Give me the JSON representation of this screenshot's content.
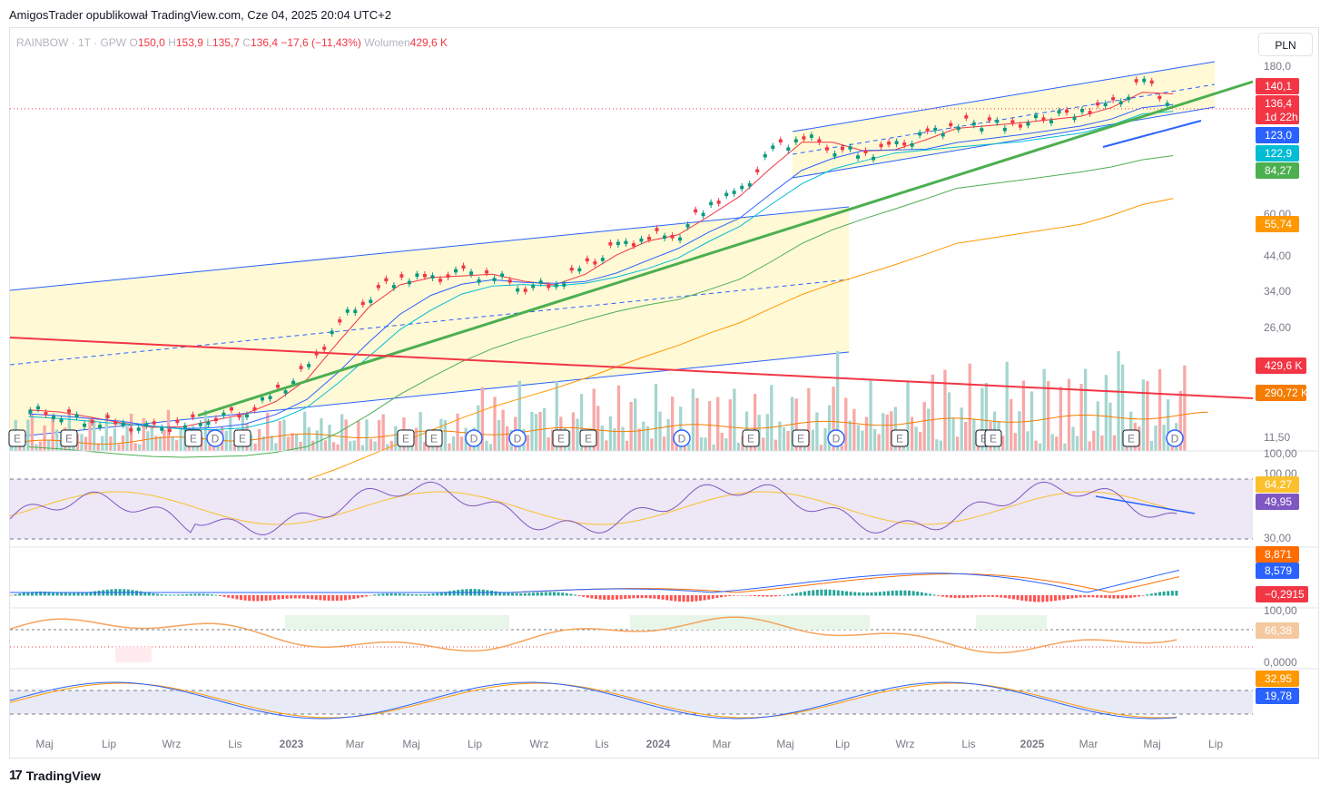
{
  "header": {
    "text": "AmigosTrader opublikował TradingView.com, Cze 04, 2025 20:04 UTC+2"
  },
  "legend": {
    "symbol": "RAINBOW · 1T · GPW",
    "o_label": "O",
    "o": "150,0",
    "h_label": "H",
    "h": "153,9",
    "l_label": "L",
    "l": "135,7",
    "c_label": "C",
    "c": "136,4",
    "change": "−17,6 (−11,43%)",
    "vol_label": "Wolumen",
    "vol": "429,6 K"
  },
  "currency": "PLN",
  "brand": "TradingView",
  "colors": {
    "up": "#089981",
    "down": "#f23645",
    "green_trend": "#4caf50",
    "red_trend": "#f23645",
    "channel": "#2962ff",
    "fill": "#fff9d6"
  },
  "chart_data": {
    "type": "line",
    "scale": "log",
    "price_ticks": [
      "180,0",
      "60,00",
      "44,00",
      "34,00",
      "26,00",
      "11,50"
    ],
    "volume_tick": "100,00",
    "x_ticks": [
      "Maj",
      "Lip",
      "Wrz",
      "Lis",
      "2023",
      "Mar",
      "Maj",
      "Lip",
      "Wrz",
      "Lis",
      "2024",
      "Mar",
      "Maj",
      "Lip",
      "Wrz",
      "Lis",
      "2025",
      "Mar",
      "Maj",
      "Lip"
    ],
    "price_series": [
      {
        "date": "2022-05",
        "close": 13.0
      },
      {
        "date": "2022-06",
        "close": 12.6
      },
      {
        "date": "2022-07",
        "close": 12.0
      },
      {
        "date": "2022-08",
        "close": 11.5
      },
      {
        "date": "2022-09",
        "close": 11.2
      },
      {
        "date": "2022-10",
        "close": 11.6
      },
      {
        "date": "2022-11",
        "close": 12.4
      },
      {
        "date": "2022-12",
        "close": 12.8
      },
      {
        "date": "2023-01",
        "close": 15.0
      },
      {
        "date": "2023-02",
        "close": 18.0
      },
      {
        "date": "2023-03",
        "close": 26.0
      },
      {
        "date": "2023-04",
        "close": 32.0
      },
      {
        "date": "2023-05",
        "close": 37.0
      },
      {
        "date": "2023-06",
        "close": 36.0
      },
      {
        "date": "2023-07",
        "close": 38.0
      },
      {
        "date": "2023-08",
        "close": 37.0
      },
      {
        "date": "2023-09",
        "close": 34.0
      },
      {
        "date": "2023-10",
        "close": 35.0
      },
      {
        "date": "2023-11",
        "close": 40.0
      },
      {
        "date": "2023-12",
        "close": 47.0
      },
      {
        "date": "2024-01",
        "close": 50.0
      },
      {
        "date": "2024-02",
        "close": 52.0
      },
      {
        "date": "2024-03",
        "close": 66.0
      },
      {
        "date": "2024-04",
        "close": 72.0
      },
      {
        "date": "2024-05",
        "close": 100.0
      },
      {
        "date": "2024-06",
        "close": 110.0
      },
      {
        "date": "2024-07",
        "close": 100.0
      },
      {
        "date": "2024-08",
        "close": 96.0
      },
      {
        "date": "2024-09",
        "close": 102.0
      },
      {
        "date": "2024-10",
        "close": 112.0
      },
      {
        "date": "2024-11",
        "close": 122.0
      },
      {
        "date": "2025-01",
        "close": 122.0
      },
      {
        "date": "2025-03",
        "close": 135.0
      },
      {
        "date": "2025-04",
        "close": 140.0
      },
      {
        "date": "2025-05",
        "close": 170.0
      },
      {
        "date": "2025-06",
        "close": 136.4
      }
    ],
    "price_labels": [
      {
        "value": "140,1",
        "color": "#f23645"
      },
      {
        "value": "136,4",
        "color": "#f23645",
        "sub": "1d 22h"
      },
      {
        "value": "123,0",
        "color": "#2962ff"
      },
      {
        "value": "122,9",
        "color": "#00bcd4"
      },
      {
        "value": "84,27",
        "color": "#4caf50"
      },
      {
        "value": "55,74",
        "color": "#ff9800"
      },
      {
        "value": "429,6 K",
        "color": "#f23645"
      },
      {
        "value": "290,72 K",
        "color": "#f57c00"
      }
    ],
    "events": [
      "E",
      "E",
      "E",
      "D",
      "E",
      "E",
      "E",
      "D",
      "D",
      "E",
      "E",
      "D",
      "E",
      "E",
      "D",
      "E",
      "E",
      "E",
      "E",
      "D"
    ],
    "rsi": {
      "upper": "100,00",
      "lower": "30,00",
      "value": "64,27",
      "value2": "49,95"
    },
    "macd": {
      "signal": "8,871",
      "macd": "8,579",
      "hist": "−0,2915"
    },
    "osc3": {
      "upper": "100,00",
      "lower": "0,0000",
      "value": "66,38"
    },
    "stoch": {
      "k": "32,95",
      "d": "19,78"
    }
  }
}
